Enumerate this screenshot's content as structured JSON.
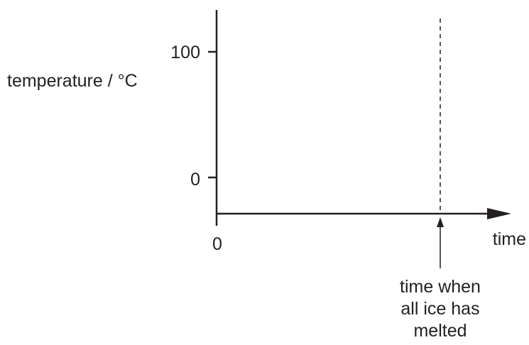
{
  "chart_data": {
    "type": "line",
    "title": "",
    "xlabel": "time",
    "ylabel": "temperature / °C",
    "y_ticks": [
      "100",
      "0"
    ],
    "x_origin_label": "0",
    "series": [],
    "annotations": [
      {
        "lines": [
          "time when",
          "all ice has",
          "melted"
        ]
      }
    ]
  },
  "colors": {
    "ink": "#231f20",
    "background": "#ffffff"
  }
}
